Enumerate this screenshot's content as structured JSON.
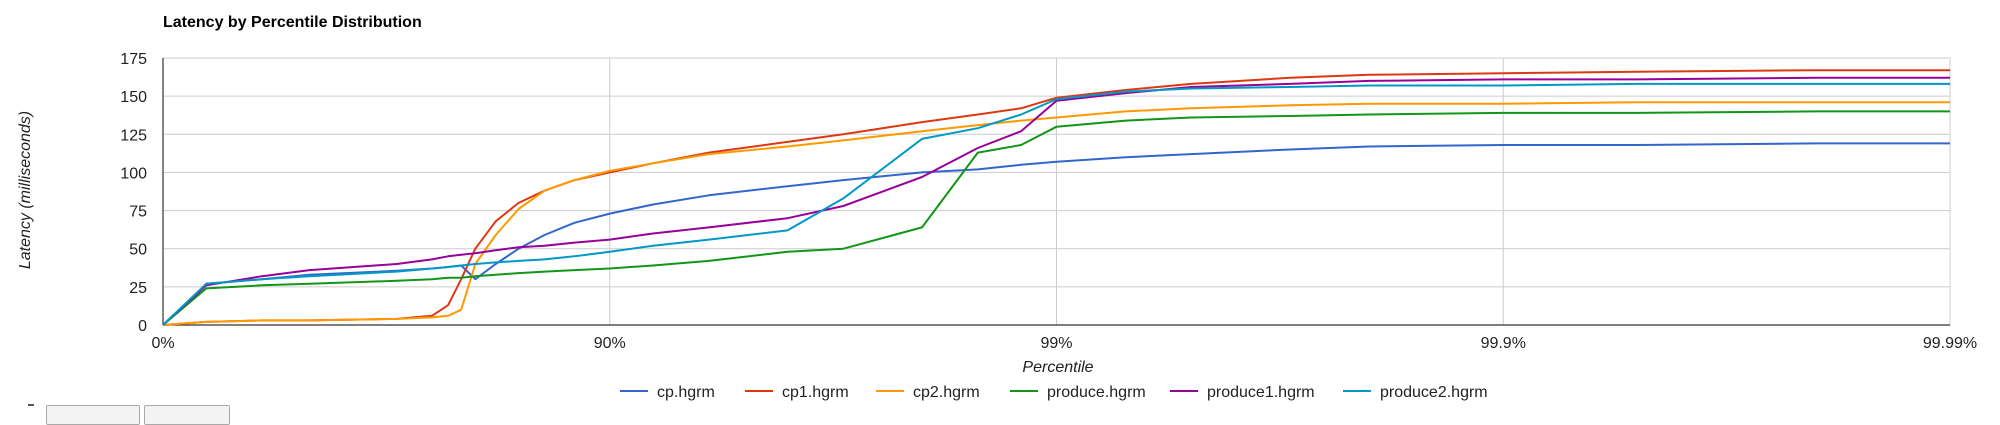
{
  "chart_data": {
    "type": "line",
    "title": "Latency by Percentile Distribution",
    "xlabel": "Percentile",
    "ylabel": "Latency (milliseconds)",
    "x_scale": "percentile-log (1/(1-p))",
    "x_ticks": [
      "0%",
      "90%",
      "99%",
      "99.9%",
      "99.99%"
    ],
    "ylim": [
      0,
      175
    ],
    "y_ticks": [
      0,
      25,
      50,
      75,
      100,
      125,
      150,
      175
    ],
    "grid": true,
    "legend_position": "bottom",
    "series": [
      {
        "name": "cp.hgrm",
        "color": "#3366cc",
        "points": [
          [
            "0%",
            0
          ],
          [
            "20%",
            27
          ],
          [
            "40%",
            30
          ],
          [
            "53%",
            33
          ],
          [
            "70%",
            35.5
          ],
          [
            "75%",
            37
          ],
          [
            "77%",
            38
          ],
          [
            "78.5%",
            39
          ],
          [
            "80%",
            30
          ],
          [
            "82%",
            40
          ],
          [
            "84%",
            50
          ],
          [
            "86%",
            59
          ],
          [
            "88%",
            67
          ],
          [
            "90%",
            73
          ],
          [
            "92%",
            79
          ],
          [
            "94%",
            85
          ],
          [
            "96%",
            91
          ],
          [
            "97%",
            95
          ],
          [
            "98%",
            100
          ],
          [
            "98.5%",
            102
          ],
          [
            "98.8%",
            105
          ],
          [
            "99%",
            107
          ],
          [
            "99.3%",
            110
          ],
          [
            "99.5%",
            112
          ],
          [
            "99.7%",
            115
          ],
          [
            "99.8%",
            117
          ],
          [
            "99.9%",
            118
          ],
          [
            "99.95%",
            118
          ],
          [
            "99.98%",
            119
          ],
          [
            "99.99%",
            119
          ]
        ]
      },
      {
        "name": "cp1.hgrm",
        "color": "#dc3912",
        "points": [
          [
            "0%",
            0
          ],
          [
            "20%",
            2
          ],
          [
            "40%",
            3
          ],
          [
            "53%",
            3
          ],
          [
            "70%",
            4
          ],
          [
            "75%",
            6
          ],
          [
            "77%",
            13
          ],
          [
            "78.5%",
            30
          ],
          [
            "80%",
            50
          ],
          [
            "82%",
            68
          ],
          [
            "84%",
            80
          ],
          [
            "86%",
            88
          ],
          [
            "88%",
            95
          ],
          [
            "90%",
            100
          ],
          [
            "92%",
            106
          ],
          [
            "94%",
            113
          ],
          [
            "96%",
            120
          ],
          [
            "97%",
            125
          ],
          [
            "98%",
            133
          ],
          [
            "98.5%",
            138
          ],
          [
            "98.8%",
            142
          ],
          [
            "99%",
            149
          ],
          [
            "99.3%",
            154
          ],
          [
            "99.5%",
            158
          ],
          [
            "99.7%",
            162
          ],
          [
            "99.8%",
            164
          ],
          [
            "99.9%",
            165
          ],
          [
            "99.95%",
            166
          ],
          [
            "99.98%",
            167
          ],
          [
            "99.99%",
            167
          ]
        ]
      },
      {
        "name": "cp2.hgrm",
        "color": "#ff9900",
        "points": [
          [
            "0%",
            0
          ],
          [
            "20%",
            2
          ],
          [
            "40%",
            3
          ],
          [
            "53%",
            3
          ],
          [
            "70%",
            4
          ],
          [
            "75%",
            5
          ],
          [
            "77%",
            6
          ],
          [
            "78.5%",
            10
          ],
          [
            "80%",
            40
          ],
          [
            "82%",
            59
          ],
          [
            "84%",
            76
          ],
          [
            "86%",
            88
          ],
          [
            "88%",
            95
          ],
          [
            "90%",
            101
          ],
          [
            "92%",
            106
          ],
          [
            "94%",
            112
          ],
          [
            "96%",
            117
          ],
          [
            "97%",
            121
          ],
          [
            "98%",
            127
          ],
          [
            "98.5%",
            131
          ],
          [
            "98.8%",
            134
          ],
          [
            "99%",
            136
          ],
          [
            "99.3%",
            140
          ],
          [
            "99.5%",
            142
          ],
          [
            "99.7%",
            144
          ],
          [
            "99.8%",
            145
          ],
          [
            "99.9%",
            145
          ],
          [
            "99.95%",
            146
          ],
          [
            "99.98%",
            146
          ],
          [
            "99.99%",
            146
          ]
        ]
      },
      {
        "name": "produce.hgrm",
        "color": "#109618",
        "points": [
          [
            "0%",
            0
          ],
          [
            "20%",
            24
          ],
          [
            "40%",
            26
          ],
          [
            "53%",
            27
          ],
          [
            "70%",
            29
          ],
          [
            "75%",
            30
          ],
          [
            "77%",
            31
          ],
          [
            "78.5%",
            31
          ],
          [
            "80%",
            32
          ],
          [
            "82%",
            33
          ],
          [
            "84%",
            34
          ],
          [
            "86%",
            35
          ],
          [
            "88%",
            36
          ],
          [
            "90%",
            37
          ],
          [
            "92%",
            39
          ],
          [
            "94%",
            42
          ],
          [
            "96%",
            48
          ],
          [
            "97%",
            50
          ],
          [
            "98%",
            64
          ],
          [
            "98.5%",
            113
          ],
          [
            "98.8%",
            118
          ],
          [
            "99%",
            130
          ],
          [
            "99.3%",
            134
          ],
          [
            "99.5%",
            136
          ],
          [
            "99.7%",
            137
          ],
          [
            "99.8%",
            138
          ],
          [
            "99.9%",
            139
          ],
          [
            "99.95%",
            139
          ],
          [
            "99.98%",
            140
          ],
          [
            "99.99%",
            140
          ]
        ]
      },
      {
        "name": "produce1.hgrm",
        "color": "#990099",
        "points": [
          [
            "0%",
            0
          ],
          [
            "20%",
            26
          ],
          [
            "40%",
            32
          ],
          [
            "53%",
            36
          ],
          [
            "70%",
            40
          ],
          [
            "75%",
            43
          ],
          [
            "77%",
            45
          ],
          [
            "78.5%",
            46
          ],
          [
            "80%",
            47
          ],
          [
            "82%",
            49
          ],
          [
            "84%",
            51
          ],
          [
            "86%",
            52
          ],
          [
            "88%",
            54
          ],
          [
            "90%",
            56
          ],
          [
            "92%",
            60
          ],
          [
            "94%",
            64
          ],
          [
            "96%",
            70
          ],
          [
            "97%",
            78
          ],
          [
            "98%",
            97
          ],
          [
            "98.5%",
            116
          ],
          [
            "98.8%",
            127
          ],
          [
            "99%",
            147
          ],
          [
            "99.3%",
            152
          ],
          [
            "99.5%",
            156
          ],
          [
            "99.7%",
            158
          ],
          [
            "99.8%",
            160
          ],
          [
            "99.9%",
            161
          ],
          [
            "99.95%",
            161
          ],
          [
            "99.98%",
            162
          ],
          [
            "99.99%",
            162
          ]
        ]
      },
      {
        "name": "produce2.hgrm",
        "color": "#0099c6",
        "points": [
          [
            "0%",
            0
          ],
          [
            "20%",
            27
          ],
          [
            "40%",
            30
          ],
          [
            "53%",
            32
          ],
          [
            "70%",
            35
          ],
          [
            "75%",
            37
          ],
          [
            "77%",
            38
          ],
          [
            "78.5%",
            39
          ],
          [
            "80%",
            40
          ],
          [
            "82%",
            41
          ],
          [
            "84%",
            42
          ],
          [
            "86%",
            43
          ],
          [
            "88%",
            45
          ],
          [
            "90%",
            48
          ],
          [
            "92%",
            52
          ],
          [
            "94%",
            56
          ],
          [
            "96%",
            62
          ],
          [
            "97%",
            83
          ],
          [
            "98%",
            122
          ],
          [
            "98.5%",
            129
          ],
          [
            "98.8%",
            138
          ],
          [
            "99%",
            148
          ],
          [
            "99.3%",
            153
          ],
          [
            "99.5%",
            155
          ],
          [
            "99.7%",
            156
          ],
          [
            "99.8%",
            157
          ],
          [
            "99.9%",
            157
          ],
          [
            "99.95%",
            158
          ],
          [
            "99.98%",
            158
          ],
          [
            "99.99%",
            158
          ]
        ]
      }
    ]
  }
}
